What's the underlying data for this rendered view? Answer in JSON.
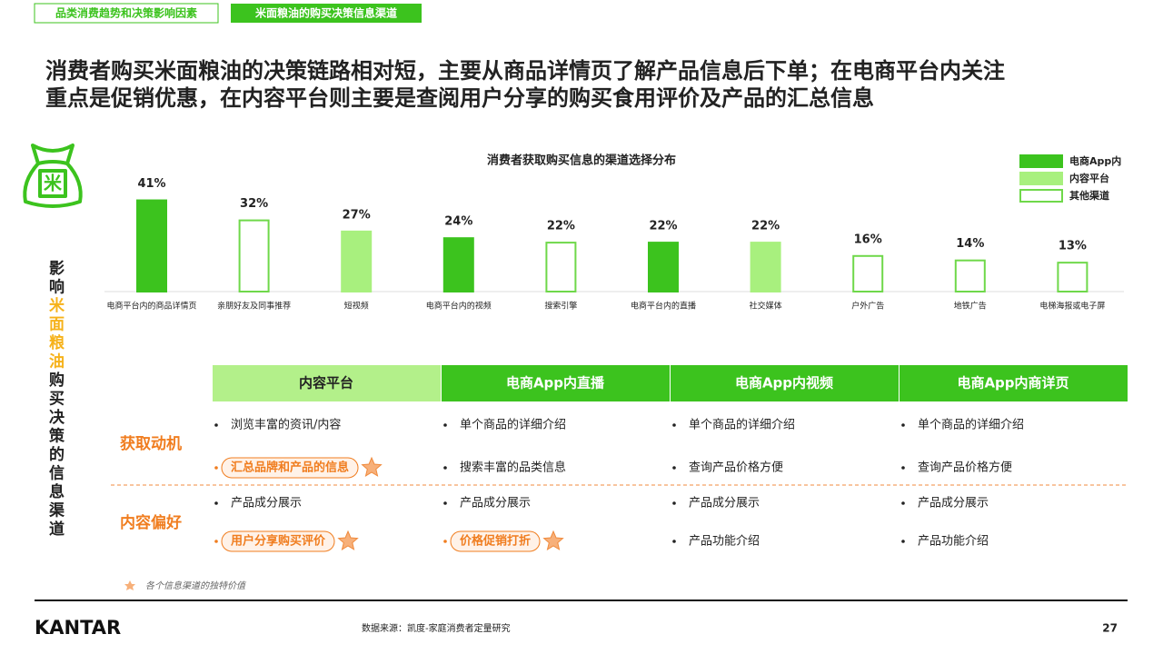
{
  "tabs": [
    "品类消费趋势和决策影响因素",
    "米面粮油的购买决策信息渠道"
  ],
  "headline": [
    "消费者购买米面粮油的决策链路相对短，主要从商品详情页了解产品信息后下单；在电商平台内关注",
    "重点是促销优惠，在内容平台则主要是查阅用户分享的购买食用评价及产品的汇总信息"
  ],
  "side_title": [
    "影响",
    "米面粮油",
    "购买决策的信息渠道"
  ],
  "chart_data": {
    "type": "bar",
    "title": "消费者获取购买信息的渠道选择分布",
    "categories": [
      "电商平台内的商品详情页",
      "亲朋好友及同事推荐",
      "短视频",
      "电商平台内的视频",
      "搜索引擎",
      "电商平台内的直播",
      "社交媒体",
      "户外广告",
      "地铁广告",
      "电梯海报或电子屏"
    ],
    "series": [
      {
        "name": "电商App内",
        "color": "#3cc31e",
        "values": [
          41,
          null,
          null,
          24,
          null,
          22,
          null,
          null,
          null,
          null
        ],
        "value_labels": [
          "41%",
          null,
          null,
          "24%",
          null,
          "22%",
          null,
          null,
          null,
          null
        ]
      },
      {
        "name": "内容平台",
        "color": "#a8f07e",
        "values": [
          null,
          null,
          27,
          null,
          null,
          null,
          22,
          null,
          null,
          null
        ],
        "value_labels": [
          null,
          null,
          "27%",
          null,
          null,
          null,
          "22%",
          null,
          null,
          null
        ]
      },
      {
        "name": "其他渠道",
        "color": "#ffffff",
        "values": [
          null,
          32,
          null,
          null,
          22,
          null,
          null,
          16,
          14,
          13
        ],
        "value_labels": [
          null,
          "32%",
          null,
          null,
          "22%",
          null,
          null,
          "16%",
          "14%",
          "13%"
        ]
      }
    ],
    "legend": "top-right"
  },
  "table": {
    "headers": [
      "内容平台",
      "电商App内直播",
      "电商App内视频",
      "电商App内商详页"
    ],
    "rows": [
      {
        "label": "获取动机",
        "cells": [
          [
            {
              "text": "浏览丰富的资讯/内容"
            },
            {
              "text": "汇总品牌和产品的信息",
              "highlight": true
            }
          ],
          [
            {
              "text": "单个商品的详细介绍"
            },
            {
              "text": "搜索丰富的品类信息"
            }
          ],
          [
            {
              "text": "单个商品的详细介绍"
            },
            {
              "text": "查询产品价格方便"
            }
          ],
          [
            {
              "text": "单个商品的详细介绍"
            },
            {
              "text": "查询产品价格方便"
            }
          ]
        ]
      },
      {
        "label": "内容偏好",
        "cells": [
          [
            {
              "text": "产品成分展示"
            },
            {
              "text": "用户分享购买评价",
              "highlight": true
            }
          ],
          [
            {
              "text": "产品成分展示"
            },
            {
              "text": "价格促销打折",
              "highlight": true
            }
          ],
          [
            {
              "text": "产品成分展示"
            },
            {
              "text": "产品功能介绍"
            }
          ],
          [
            {
              "text": "产品成分展示"
            },
            {
              "text": "产品功能介绍"
            }
          ]
        ]
      }
    ]
  },
  "footnote": "各个信息渠道的独特价值",
  "source": "数据来源：凯度-家庭消费者定量研究",
  "brand": "KANTAR",
  "page_number": "27"
}
